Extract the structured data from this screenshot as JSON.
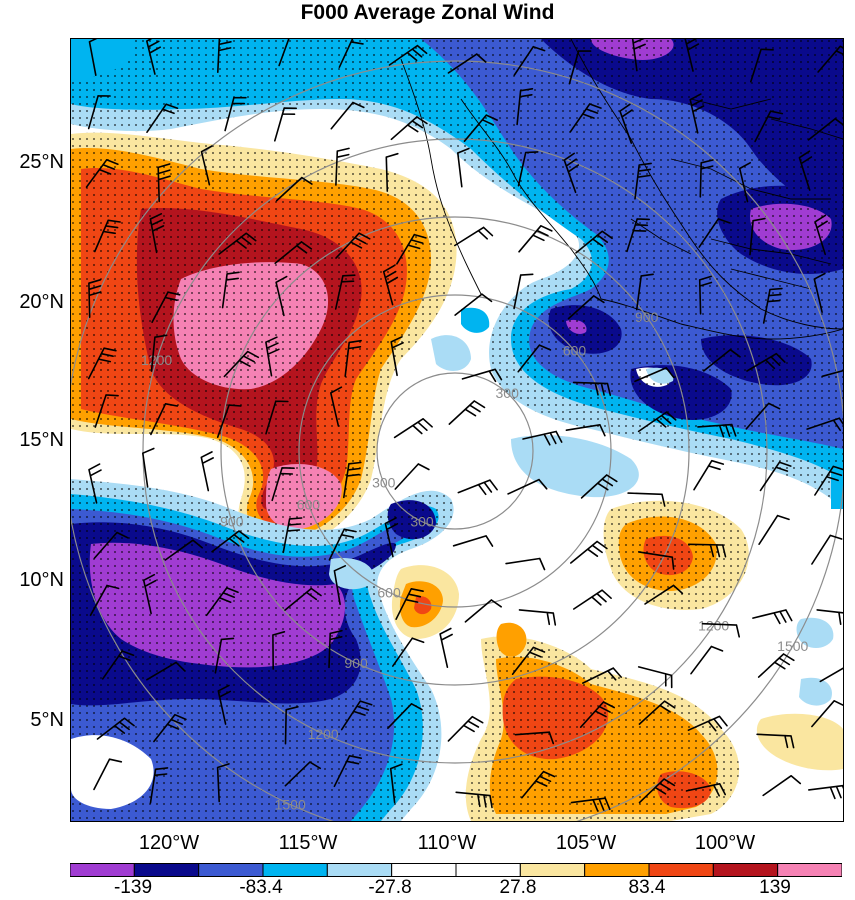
{
  "title": "F000 Average Zonal Wind",
  "lat_ticks": [
    "25°N",
    "20°N",
    "15°N",
    "10°N",
    "5°N"
  ],
  "lon_ticks": [
    "120°W",
    "115°W",
    "110°W",
    "105°W",
    "100°W"
  ],
  "range_rings": {
    "labels": [
      "300",
      "600",
      "900",
      "1200",
      "1500"
    ],
    "color": "#8c8c8c"
  },
  "colorbar": {
    "labels": [
      "-139",
      "-83.4",
      "-27.8",
      "27.8",
      "83.4",
      "139"
    ],
    "colors": [
      "#a03cd2",
      "#0a0a8c",
      "#3c5ad2",
      "#00b4f0",
      "#aadcf5",
      "#ffffff",
      "#ffffff",
      "#fae6a0",
      "#ffa000",
      "#f04614",
      "#b4141e",
      "#f582b4"
    ]
  },
  "colors": {
    "stipple": "#000000",
    "coast": "#000000",
    "barb": "#000000"
  }
}
